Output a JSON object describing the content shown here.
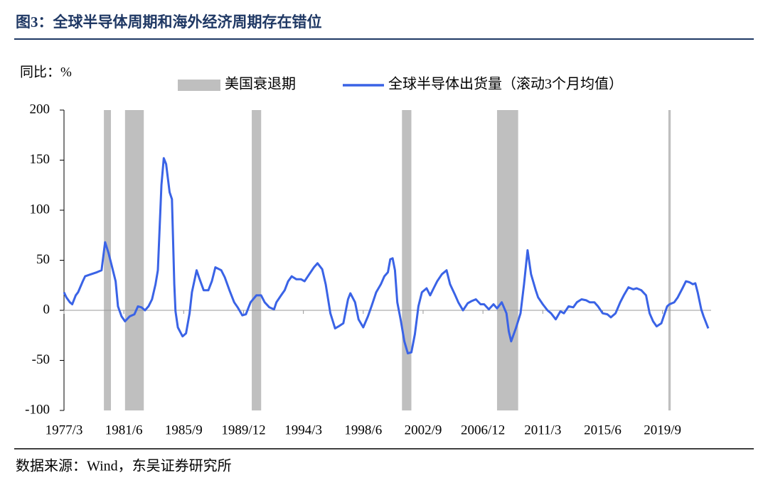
{
  "chart_data": {
    "type": "line",
    "title": "图3：全球半导体周期和海外经济周期存在错位",
    "y_label": "同比：%",
    "source": "数据来源：Wind，东吴证券研究所",
    "ylim": [
      -100,
      200
    ],
    "yticks": [
      -100,
      -50,
      0,
      50,
      100,
      150,
      200
    ],
    "xlim": [
      "1977/3",
      "2022/12"
    ],
    "xticks": [
      "1977/3",
      "1981/6",
      "1985/9",
      "1989/12",
      "1994/3",
      "1998/6",
      "2002/9",
      "2006/12",
      "2011/3",
      "2015/6",
      "2019/9"
    ],
    "recessions": {
      "name": "美国衰退期",
      "color": "#bfbfbf",
      "periods": [
        [
          "1980/1",
          "1980/7"
        ],
        [
          "1981/7",
          "1982/11"
        ],
        [
          "1990/7",
          "1991/3"
        ],
        [
          "2001/3",
          "2001/11"
        ],
        [
          "2007/12",
          "2009/6"
        ],
        [
          "2020/2",
          "2020/4"
        ]
      ]
    },
    "x": [
      "1977/3",
      "1977/5",
      "1977/8",
      "1977/10",
      "1978/1",
      "1978/3",
      "1978/7",
      "1978/9",
      "1979/2",
      "1979/7",
      "1979/11",
      "1980/2",
      "1980/5",
      "1980/8",
      "1980/11",
      "1981/1",
      "1981/4",
      "1981/7",
      "1981/11",
      "1982/3",
      "1982/6",
      "1982/9",
      "1982/12",
      "1983/3",
      "1983/6",
      "1983/9",
      "1983/11",
      "1984/2",
      "1984/4",
      "1984/6",
      "1984/9",
      "1984/11",
      "1985/1",
      "1985/2",
      "1985/4",
      "1985/8",
      "1985/11",
      "1986/2",
      "1986/4",
      "1986/8",
      "1986/10",
      "1987/2",
      "1987/6",
      "1987/9",
      "1987/12",
      "1988/5",
      "1988/8",
      "1988/12",
      "1989/4",
      "1989/7",
      "1989/11",
      "1990/2",
      "1990/6",
      "1990/11",
      "1991/3",
      "1991/6",
      "1991/10",
      "1992/2",
      "1992/4",
      "1992/8",
      "1992/11",
      "1993/2",
      "1993/5",
      "1993/9",
      "1994/1",
      "1994/4",
      "1994/8",
      "1994/12",
      "1995/3",
      "1995/7",
      "1995/10",
      "1996/2",
      "1996/6",
      "1996/9",
      "1997/1",
      "1997/5",
      "1997/7",
      "1997/11",
      "1998/2",
      "1998/6",
      "1998/10",
      "1999/1",
      "1999/5",
      "1999/9",
      "1999/12",
      "2000/3",
      "2000/5",
      "2000/7",
      "2000/9",
      "2000/11",
      "2001/2",
      "2001/5",
      "2001/8",
      "2001/11",
      "2002/2",
      "2002/5",
      "2002/8",
      "2002/12",
      "2003/3",
      "2003/6",
      "2003/9",
      "2004/1",
      "2004/5",
      "2004/8",
      "2004/12",
      "2005/3",
      "2005/7",
      "2005/11",
      "2006/2",
      "2006/6",
      "2006/10",
      "2007/1",
      "2007/5",
      "2007/9",
      "2007/12",
      "2008/4",
      "2008/8",
      "2008/10",
      "2008/12",
      "2009/4",
      "2009/8",
      "2009/11",
      "2010/2",
      "2010/5",
      "2010/9",
      "2010/11",
      "2011/3",
      "2011/7",
      "2011/10",
      "2012/2",
      "2012/6",
      "2012/9",
      "2013/1",
      "2013/5",
      "2013/8",
      "2013/12",
      "2014/4",
      "2014/7",
      "2014/11",
      "2015/2",
      "2015/6",
      "2015/10",
      "2016/1",
      "2016/5",
      "2016/9",
      "2016/12",
      "2017/4",
      "2017/8",
      "2017/11",
      "2018/3",
      "2018/7",
      "2018/10",
      "2019/1",
      "2019/4",
      "2019/8",
      "2019/10",
      "2020/1",
      "2020/3",
      "2020/7",
      "2020/10",
      "2021/2",
      "2021/5",
      "2021/8",
      "2021/11",
      "2022/1",
      "2022/3",
      "2022/6",
      "2022/8",
      "2022/12"
    ],
    "series": [
      {
        "name": "全球半导体出货量（滚动3个月均值）",
        "color": "#3a63e6",
        "values": [
          18,
          13,
          8,
          6,
          15,
          18,
          29,
          34,
          36,
          38,
          40,
          68,
          57,
          43,
          29,
          4,
          -6,
          -11,
          -6,
          -4,
          4,
          3,
          0,
          4,
          11,
          26,
          40,
          125,
          152,
          146,
          118,
          111,
          26,
          -1,
          -17,
          -26,
          -23,
          -3,
          18,
          40,
          33,
          20,
          20,
          29,
          43,
          40,
          33,
          20,
          8,
          3,
          -5,
          -4,
          8,
          15,
          15,
          8,
          3,
          1,
          8,
          15,
          20,
          29,
          34,
          31,
          31,
          29,
          36,
          43,
          47,
          41,
          26,
          -3,
          -18,
          -16,
          -13,
          11,
          17,
          8,
          -9,
          -17,
          -6,
          4,
          18,
          26,
          34,
          38,
          51,
          52,
          40,
          8,
          -10,
          -31,
          -43,
          -42,
          -24,
          4,
          18,
          22,
          15,
          22,
          29,
          36,
          40,
          26,
          16,
          8,
          0,
          7,
          9,
          11,
          6,
          6,
          1,
          6,
          2,
          8,
          -3,
          -21,
          -31,
          -18,
          -3,
          26,
          60,
          36,
          20,
          13,
          6,
          0,
          -3,
          -9,
          -1,
          -3,
          4,
          3,
          8,
          11,
          10,
          8,
          8,
          4,
          -3,
          -4,
          -7,
          -3,
          8,
          15,
          23,
          21,
          22,
          20,
          15,
          -3,
          -11,
          -16,
          -13,
          -6,
          4,
          6,
          8,
          13,
          22,
          29,
          28,
          26,
          27,
          18,
          1,
          -6,
          -18
        ]
      }
    ]
  }
}
